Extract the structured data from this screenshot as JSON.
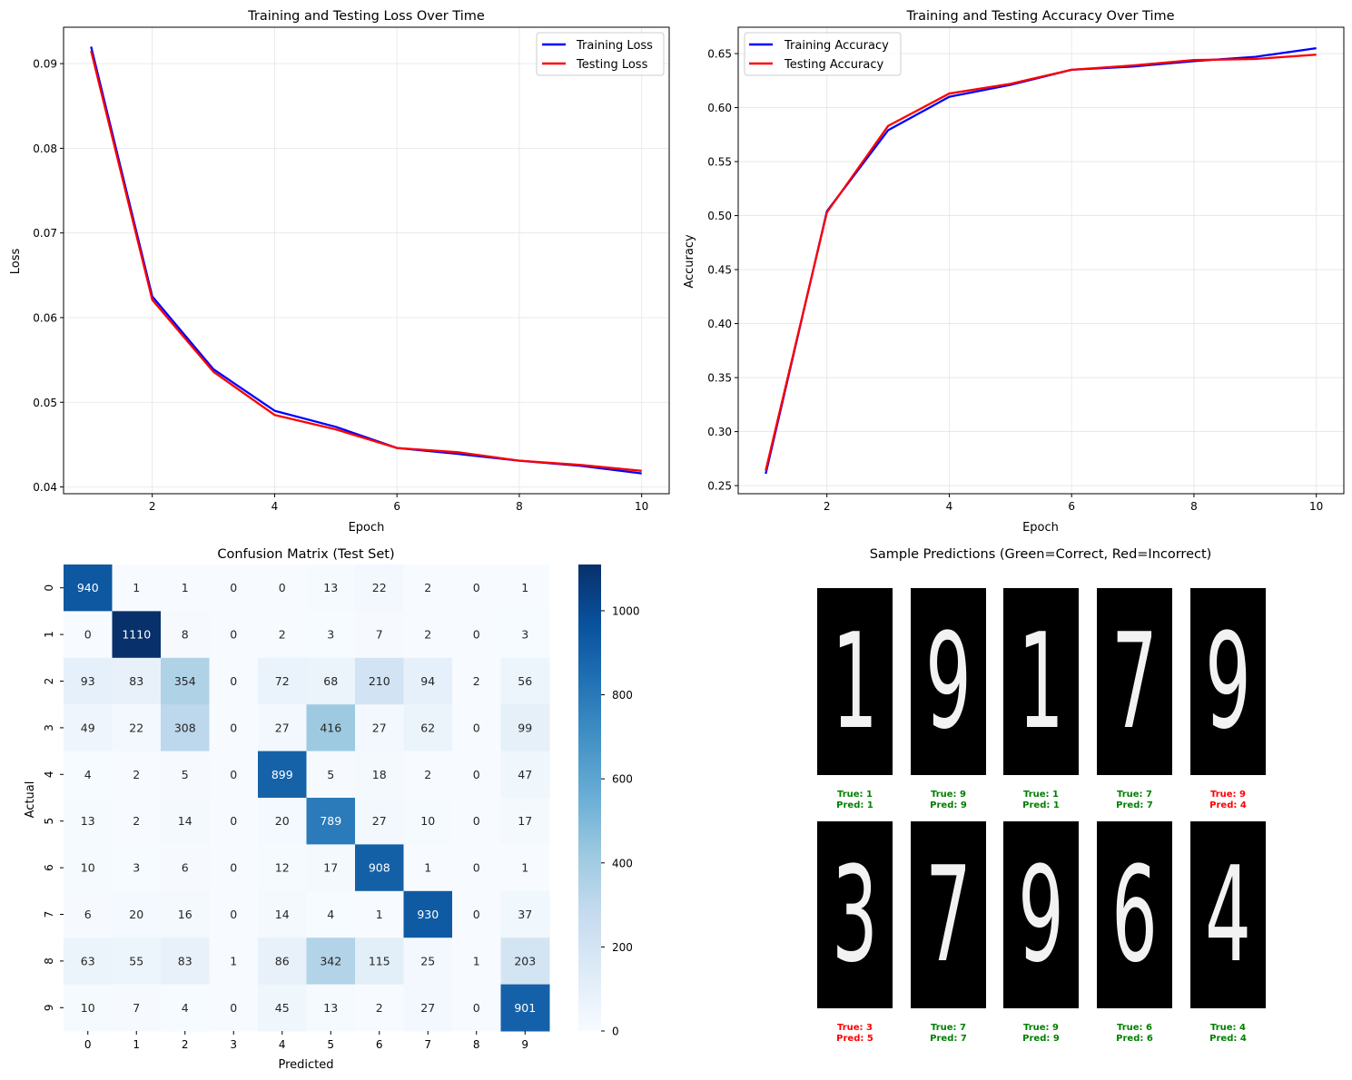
{
  "chart_data": [
    {
      "id": "loss",
      "type": "line",
      "title": "Training and Testing Loss Over Time",
      "xlabel": "Epoch",
      "ylabel": "Loss",
      "x": [
        1,
        2,
        3,
        4,
        5,
        6,
        7,
        8,
        9,
        10
      ],
      "xlim": [
        0.55,
        10.45
      ],
      "ylim": [
        0.0392,
        0.0943
      ],
      "xticks": [
        2,
        4,
        6,
        8,
        10
      ],
      "yticks": [
        0.04,
        0.05,
        0.06,
        0.07,
        0.08,
        0.09
      ],
      "ytick_labels": [
        "0.04",
        "0.05",
        "0.06",
        "0.07",
        "0.08",
        "0.09"
      ],
      "grid": true,
      "legend_position": "upper right",
      "series": [
        {
          "name": "Training Loss",
          "color": "#0000ff",
          "values": [
            0.092,
            0.0625,
            0.0539,
            0.049,
            0.0471,
            0.0446,
            0.0439,
            0.0431,
            0.0425,
            0.0416
          ]
        },
        {
          "name": "Testing Loss",
          "color": "#ff0000",
          "values": [
            0.0915,
            0.0621,
            0.0536,
            0.0485,
            0.0468,
            0.0446,
            0.0441,
            0.0431,
            0.0426,
            0.0419
          ]
        }
      ]
    },
    {
      "id": "accuracy",
      "type": "line",
      "title": "Training and Testing Accuracy Over Time",
      "xlabel": "Epoch",
      "ylabel": "Accuracy",
      "x": [
        1,
        2,
        3,
        4,
        5,
        6,
        7,
        8,
        9,
        10
      ],
      "xlim": [
        0.55,
        10.45
      ],
      "ylim": [
        0.2425,
        0.6744
      ],
      "xticks": [
        2,
        4,
        6,
        8,
        10
      ],
      "yticks": [
        0.25,
        0.3,
        0.35,
        0.4,
        0.45,
        0.5,
        0.55,
        0.6,
        0.65
      ],
      "ytick_labels": [
        "0.25",
        "0.30",
        "0.35",
        "0.40",
        "0.45",
        "0.50",
        "0.55",
        "0.60",
        "0.65"
      ],
      "grid": true,
      "legend_position": "upper left",
      "series": [
        {
          "name": "Training Accuracy",
          "color": "#0000ff",
          "values": [
            0.261,
            0.504,
            0.579,
            0.61,
            0.621,
            0.635,
            0.638,
            0.643,
            0.647,
            0.655
          ]
        },
        {
          "name": "Testing Accuracy",
          "color": "#ff0000",
          "values": [
            0.264,
            0.503,
            0.583,
            0.613,
            0.622,
            0.635,
            0.639,
            0.644,
            0.645,
            0.649
          ]
        }
      ]
    },
    {
      "id": "confusion",
      "type": "heatmap",
      "title": "Confusion Matrix (Test Set)",
      "xlabel": "Predicted",
      "ylabel": "Actual",
      "x_categories": [
        "0",
        "1",
        "2",
        "3",
        "4",
        "5",
        "6",
        "7",
        "8",
        "9"
      ],
      "y_categories": [
        "0",
        "1",
        "2",
        "3",
        "4",
        "5",
        "6",
        "7",
        "8",
        "9"
      ],
      "colormap": "Blues",
      "vmin": 0,
      "vmax": 1110,
      "colorbar_ticks": [
        0,
        200,
        400,
        600,
        800,
        1000
      ],
      "values": [
        [
          940,
          1,
          1,
          0,
          0,
          13,
          22,
          2,
          0,
          1
        ],
        [
          0,
          1110,
          8,
          0,
          2,
          3,
          7,
          2,
          0,
          3
        ],
        [
          93,
          83,
          354,
          0,
          72,
          68,
          210,
          94,
          2,
          56
        ],
        [
          49,
          22,
          308,
          0,
          27,
          416,
          27,
          62,
          0,
          99
        ],
        [
          4,
          2,
          5,
          0,
          899,
          5,
          18,
          2,
          0,
          47
        ],
        [
          13,
          2,
          14,
          0,
          20,
          789,
          27,
          10,
          0,
          17
        ],
        [
          10,
          3,
          6,
          0,
          12,
          17,
          908,
          1,
          0,
          1
        ],
        [
          6,
          20,
          16,
          0,
          14,
          4,
          1,
          930,
          0,
          37
        ],
        [
          63,
          55,
          83,
          1,
          86,
          342,
          115,
          25,
          1,
          203
        ],
        [
          10,
          7,
          4,
          0,
          45,
          13,
          2,
          27,
          0,
          901
        ]
      ]
    }
  ],
  "samples": {
    "title": "Sample Predictions (Green=Correct, Red=Incorrect)",
    "correct_color": "#008000",
    "incorrect_color": "#ff0000",
    "items": [
      {
        "digit": "1",
        "true": "1",
        "pred": "1",
        "true_label": "True: 1",
        "pred_label": "Pred: 1",
        "correct": true
      },
      {
        "digit": "9",
        "true": "9",
        "pred": "9",
        "true_label": "True: 9",
        "pred_label": "Pred: 9",
        "correct": true
      },
      {
        "digit": "1",
        "true": "1",
        "pred": "1",
        "true_label": "True: 1",
        "pred_label": "Pred: 1",
        "correct": true
      },
      {
        "digit": "7",
        "true": "7",
        "pred": "7",
        "true_label": "True: 7",
        "pred_label": "Pred: 7",
        "correct": true
      },
      {
        "digit": "9",
        "true": "9",
        "pred": "4",
        "true_label": "True: 9",
        "pred_label": "Pred: 4",
        "correct": false
      },
      {
        "digit": "3",
        "true": "3",
        "pred": "5",
        "true_label": "True: 3",
        "pred_label": "Pred: 5",
        "correct": false
      },
      {
        "digit": "7",
        "true": "7",
        "pred": "7",
        "true_label": "True: 7",
        "pred_label": "Pred: 7",
        "correct": true
      },
      {
        "digit": "9",
        "true": "9",
        "pred": "9",
        "true_label": "True: 9",
        "pred_label": "Pred: 9",
        "correct": true
      },
      {
        "digit": "6",
        "true": "6",
        "pred": "6",
        "true_label": "True: 6",
        "pred_label": "Pred: 6",
        "correct": true
      },
      {
        "digit": "4",
        "true": "4",
        "pred": "4",
        "true_label": "True: 4",
        "pred_label": "Pred: 4",
        "correct": true
      }
    ]
  }
}
